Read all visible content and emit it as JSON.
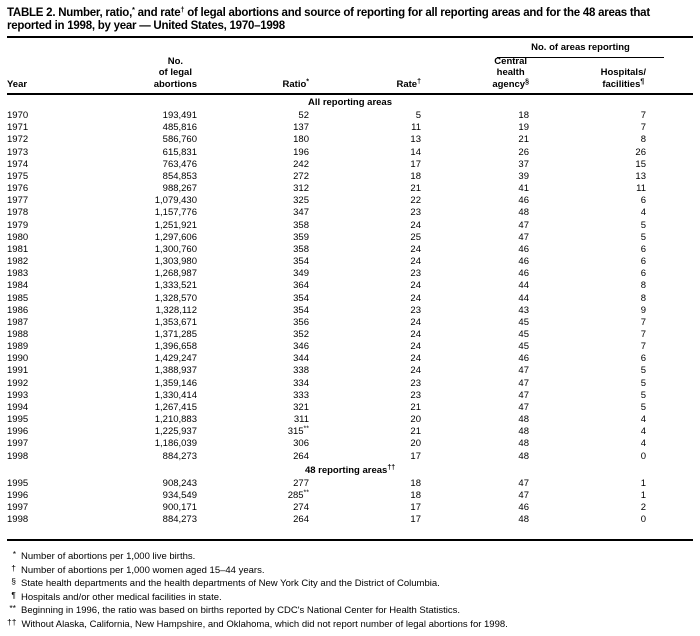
{
  "title": {
    "text_1": "TABLE 2. Number, ratio,",
    "sup_1": "*",
    "text_2": " and rate",
    "sup_2": "†",
    "text_3": " of legal abortions and source of reporting for all reporting areas and for the 48 areas that",
    "line_2": "reported in 1998, by year — United States, 1970–1998"
  },
  "header": {
    "areas_spanner": "No. of areas reporting",
    "col_year": "Year",
    "col_abortions_lines": [
      "No.",
      "of legal",
      "abortions"
    ],
    "col_ratio": "Ratio",
    "col_ratio_sup": "*",
    "col_rate": "Rate",
    "col_rate_sup": "†",
    "col_agency_lines": [
      "Central",
      "health",
      "agency"
    ],
    "col_agency_sup": "§",
    "col_facilities_lines": [
      "Hospitals/",
      "facilities"
    ],
    "col_facilities_sup": "¶"
  },
  "sections": [
    {
      "label": "All reporting areas",
      "label_sup": "",
      "rows": [
        [
          "1970",
          "193,491",
          "52",
          "5",
          "18",
          "7"
        ],
        [
          "1971",
          "485,816",
          "137",
          "11",
          "19",
          "7"
        ],
        [
          "1972",
          "586,760",
          "180",
          "13",
          "21",
          "8"
        ],
        [
          "1973",
          "615,831",
          "196",
          "14",
          "26",
          "26"
        ],
        [
          "1974",
          "763,476",
          "242",
          "17",
          "37",
          "15"
        ],
        [
          "1975",
          "854,853",
          "272",
          "18",
          "39",
          "13"
        ],
        [
          "1976",
          "988,267",
          "312",
          "21",
          "41",
          "11"
        ],
        [
          "1977",
          "1,079,430",
          "325",
          "22",
          "46",
          "6"
        ],
        [
          "1978",
          "1,157,776",
          "347",
          "23",
          "48",
          "4"
        ],
        [
          "1979",
          "1,251,921",
          "358",
          "24",
          "47",
          "5"
        ],
        [
          "1980",
          "1,297,606",
          "359",
          "25",
          "47",
          "5"
        ],
        [
          "1981",
          "1,300,760",
          "358",
          "24",
          "46",
          "6"
        ],
        [
          "1982",
          "1,303,980",
          "354",
          "24",
          "46",
          "6"
        ],
        [
          "1983",
          "1,268,987",
          "349",
          "23",
          "46",
          "6"
        ],
        [
          "1984",
          "1,333,521",
          "364",
          "24",
          "44",
          "8"
        ],
        [
          "1985",
          "1,328,570",
          "354",
          "24",
          "44",
          "8"
        ],
        [
          "1986",
          "1,328,112",
          "354",
          "23",
          "43",
          "9"
        ],
        [
          "1987",
          "1,353,671",
          "356",
          "24",
          "45",
          "7"
        ],
        [
          "1988",
          "1,371,285",
          "352",
          "24",
          "45",
          "7"
        ],
        [
          "1989",
          "1,396,658",
          "346",
          "24",
          "45",
          "7"
        ],
        [
          "1990",
          "1,429,247",
          "344",
          "24",
          "46",
          "6"
        ],
        [
          "1991",
          "1,388,937",
          "338",
          "24",
          "47",
          "5"
        ],
        [
          "1992",
          "1,359,146",
          "334",
          "23",
          "47",
          "5"
        ],
        [
          "1993",
          "1,330,414",
          "333",
          "23",
          "47",
          "5"
        ],
        [
          "1994",
          "1,267,415",
          "321",
          "21",
          "47",
          "5"
        ],
        [
          "1995",
          "1,210,883",
          "311",
          "20",
          "48",
          "4"
        ],
        [
          "1996",
          "1,225,937",
          "315**",
          "21",
          "48",
          "4"
        ],
        [
          "1997",
          "1,186,039",
          "306",
          "20",
          "48",
          "4"
        ],
        [
          "1998",
          "884,273",
          "264",
          "17",
          "48",
          "0"
        ]
      ]
    },
    {
      "label": "48 reporting areas",
      "label_sup": "††",
      "rows": [
        [
          "1995",
          "908,243",
          "277",
          "18",
          "47",
          "1"
        ],
        [
          "1996",
          "934,549",
          "285**",
          "18",
          "47",
          "1"
        ],
        [
          "1997",
          "900,171",
          "274",
          "17",
          "46",
          "2"
        ],
        [
          "1998",
          "884,273",
          "264",
          "17",
          "48",
          "0"
        ]
      ]
    }
  ],
  "footnotes": [
    {
      "marker": "*",
      "text": "Number of abortions per 1,000 live births."
    },
    {
      "marker": "†",
      "text": "Number of abortions per 1,000 women aged 15–44 years."
    },
    {
      "marker": "§",
      "text": "State health departments and the health departments of New York City and the District of Columbia."
    },
    {
      "marker": "¶",
      "text": "Hospitals and/or other medical facilities in state."
    },
    {
      "marker": "**",
      "text": "Beginning in 1996, the ratio was based on births reported by CDC's National Center for Health Statistics."
    },
    {
      "marker": "††",
      "text": "Without Alaska, California, New Hampshire, and Oklahoma, which did not report number of legal abortions for 1998."
    }
  ]
}
